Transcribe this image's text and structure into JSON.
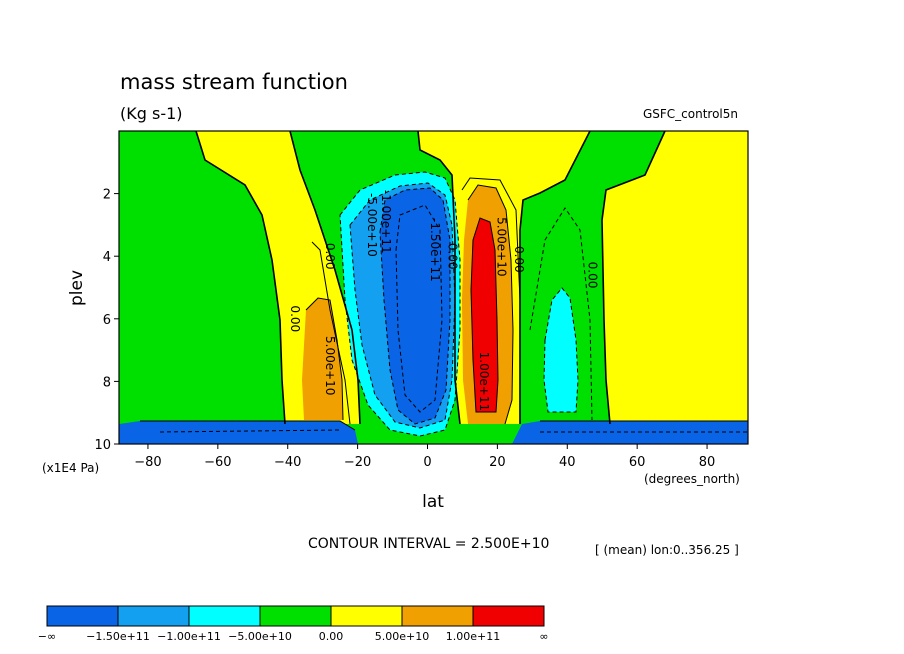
{
  "header": {
    "title": "mass stream function",
    "units": "(Kg s-1)",
    "source": "GSFC_control5n"
  },
  "footer": {
    "contour_interval": "CONTOUR INTERVAL = 2.500E+10",
    "mean_note": "[ (mean) lon:0..356.25 ]",
    "y_unit_note": "(x1E4 Pa)",
    "x_unit_note": "(degrees_north)"
  },
  "chart_data": {
    "type": "contour",
    "title": "mass stream function",
    "xlabel": "lat",
    "ylabel": "plev",
    "xlim": [
      -90,
      90
    ],
    "ylim": [
      10,
      0
    ],
    "x_ticks": [
      -80,
      -60,
      -40,
      -20,
      0,
      20,
      40,
      60,
      80
    ],
    "x_tick_labels": [
      "−80",
      "−60",
      "−40",
      "−20",
      "0",
      "20",
      "40",
      "60",
      "80"
    ],
    "y_ticks": [
      2,
      4,
      6,
      8,
      10
    ],
    "y_tick_labels": [
      "2",
      "4",
      "6",
      "8",
      "10"
    ],
    "contour_interval": 25000000000.0,
    "color_levels": [
      {
        "range": "-inf..-1.5e11",
        "color": "#0a64e6"
      },
      {
        "range": "-1.5e11..-1.0e11",
        "color": "#14a0f0"
      },
      {
        "range": "-1.0e11..-5.0e10",
        "color": "#00ffff"
      },
      {
        "range": "-5.0e10..0",
        "color": "#00e000"
      },
      {
        "range": "0..5.0e10",
        "color": "#ffff00"
      },
      {
        "range": "5.0e10..1.0e11",
        "color": "#f0a000"
      },
      {
        "range": "1.0e11..inf",
        "color": "#f00000"
      }
    ],
    "contour_labels": [
      {
        "text": "0.00",
        "lat": -38,
        "plev": 6.0
      },
      {
        "text": "0.00",
        "lat": -28,
        "plev": 4.0
      },
      {
        "text": "5.00e+10",
        "lat": -28,
        "plev": 7.5
      },
      {
        "text": "-5.00e+10",
        "lat": -16,
        "plev": 3.0
      },
      {
        "text": "-1.00e+11",
        "lat": -12,
        "plev": 2.9
      },
      {
        "text": "-1.50e+11",
        "lat": 2,
        "plev": 3.8
      },
      {
        "text": "0.00",
        "lat": 7,
        "plev": 4.0
      },
      {
        "text": "5.00e+10",
        "lat": 21,
        "plev": 3.7
      },
      {
        "text": "0.00",
        "lat": 26,
        "plev": 4.1
      },
      {
        "text": "1.00e+11",
        "lat": 16,
        "plev": 8.0
      },
      {
        "text": "0.00",
        "lat": 47,
        "plev": 4.6
      }
    ],
    "colorbar": {
      "labels": [
        "−∞",
        "−1.50e+11",
        "−1.00e+11",
        "−5.00e+10",
        "0.00",
        "5.00e+10",
        "1.00e+11",
        "∞"
      ]
    }
  }
}
